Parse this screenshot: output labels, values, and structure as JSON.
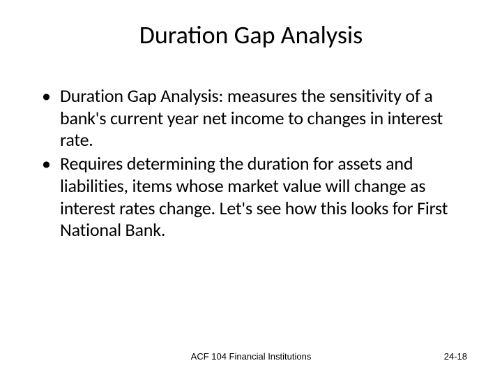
{
  "slide": {
    "title": "Duration Gap Analysis",
    "bullets": [
      "Duration Gap Analysis: measures the sensitivity of a bank's current year net income to changes in interest rate.",
      "Requires determining the duration for assets and liabilities, items whose market value will change as interest rates change.  Let's see how this looks for First\nNational Bank."
    ],
    "footer_center": "ACF 104 Financial Institutions",
    "footer_right": "24-18",
    "title_fontsize": 36,
    "body_fontsize": 26,
    "footer_fontsize": 13,
    "text_color": "#000000",
    "background_color": "#ffffff"
  }
}
